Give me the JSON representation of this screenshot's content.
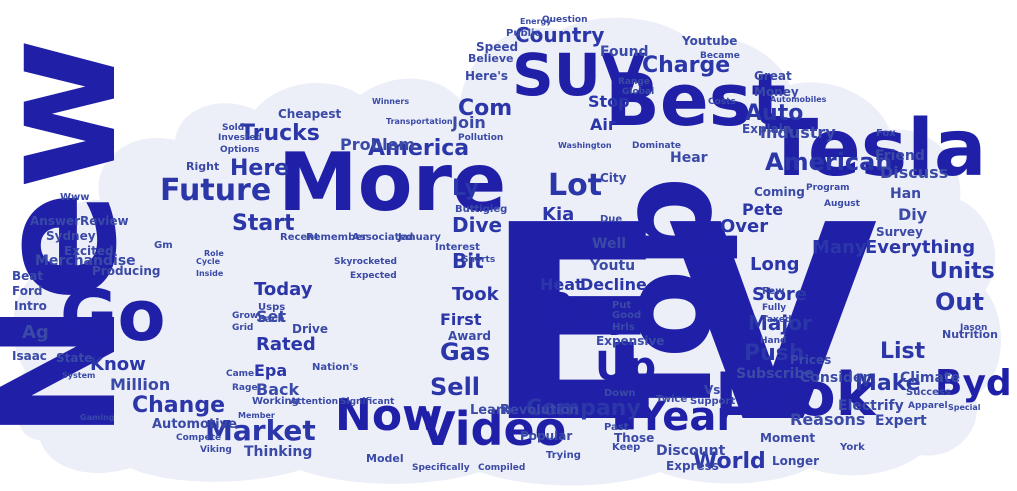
{
  "colors": {
    "background": "#ffffff",
    "cloud": "#eceef8",
    "primary": "#1f1fa8",
    "secondary": "#2b36a8",
    "tertiary": "#3a4aa6"
  },
  "words": [
    {
      "id": "ev",
      "text": "EV"
    },
    {
      "id": "new",
      "text": "New"
    },
    {
      "id": "top",
      "text": "Top"
    },
    {
      "id": "tesla",
      "text": "Tesla"
    },
    {
      "id": "more",
      "text": "More"
    },
    {
      "id": "best",
      "text": "Best"
    },
    {
      "id": "suv",
      "text": "SUV"
    },
    {
      "id": "look",
      "text": "Look"
    },
    {
      "id": "go",
      "text": "Go"
    },
    {
      "id": "buy",
      "text": "Buy"
    },
    {
      "id": "video",
      "text": "Video"
    },
    {
      "id": "now",
      "text": "Now"
    },
    {
      "id": "year",
      "text": "Year"
    },
    {
      "id": "market",
      "text": "Market"
    },
    {
      "id": "future",
      "text": "Future"
    },
    {
      "id": "american",
      "text": "American"
    },
    {
      "id": "byd",
      "text": "Byd"
    },
    {
      "id": "up",
      "text": "Up"
    },
    {
      "id": "lot",
      "text": "Lot"
    },
    {
      "id": "charge",
      "text": "Charge"
    },
    {
      "id": "country",
      "text": "Country"
    },
    {
      "id": "america",
      "text": "America"
    },
    {
      "id": "trucks",
      "text": "Trucks"
    },
    {
      "id": "here",
      "text": "Here"
    },
    {
      "id": "start",
      "text": "Start"
    },
    {
      "id": "gas",
      "text": "Gas"
    },
    {
      "id": "sell",
      "text": "Sell"
    },
    {
      "id": "company",
      "text": "Company"
    },
    {
      "id": "world",
      "text": "World"
    },
    {
      "id": "change",
      "text": "Change"
    },
    {
      "id": "auto",
      "text": "Auto"
    },
    {
      "id": "com",
      "text": "Com"
    },
    {
      "id": "join",
      "text": "Join"
    },
    {
      "id": "ly",
      "text": "Ly"
    },
    {
      "id": "dive",
      "text": "Dive"
    },
    {
      "id": "bit",
      "text": "Bit"
    },
    {
      "id": "took",
      "text": "Took"
    },
    {
      "id": "first",
      "text": "First"
    },
    {
      "id": "kia",
      "text": "Kia"
    },
    {
      "id": "heat",
      "text": "Heat"
    },
    {
      "id": "decline",
      "text": "Decline"
    },
    {
      "id": "store",
      "text": "Store"
    },
    {
      "id": "long",
      "text": "Long"
    },
    {
      "id": "major",
      "text": "Major"
    },
    {
      "id": "push",
      "text": "Push"
    },
    {
      "id": "over",
      "text": "Over"
    },
    {
      "id": "pete",
      "text": "Pete"
    },
    {
      "id": "many",
      "text": "Many"
    },
    {
      "id": "everything",
      "text": "Everything"
    },
    {
      "id": "units",
      "text": "Units"
    },
    {
      "id": "out",
      "text": "Out"
    },
    {
      "id": "list",
      "text": "List"
    },
    {
      "id": "make",
      "text": "Make"
    },
    {
      "id": "consider",
      "text": "Consider"
    },
    {
      "id": "subscribe",
      "text": "Subscribe"
    },
    {
      "id": "climate",
      "text": "Climate"
    },
    {
      "id": "electrify",
      "text": "Electrify"
    },
    {
      "id": "expert",
      "text": "Expert"
    },
    {
      "id": "reasons",
      "text": "Reasons"
    },
    {
      "id": "industry",
      "text": "Industry"
    },
    {
      "id": "discuss",
      "text": "Discuss"
    },
    {
      "id": "friend",
      "text": "Friend"
    },
    {
      "id": "han",
      "text": "Han"
    },
    {
      "id": "diy",
      "text": "Diy"
    },
    {
      "id": "know",
      "text": "Know"
    },
    {
      "id": "million",
      "text": "Million"
    },
    {
      "id": "rated",
      "text": "Rated"
    },
    {
      "id": "epa",
      "text": "Epa"
    },
    {
      "id": "back",
      "text": "Back"
    },
    {
      "id": "today",
      "text": "Today"
    },
    {
      "id": "set",
      "text": "Set"
    },
    {
      "id": "problem",
      "text": "Problem"
    },
    {
      "id": "merchandise",
      "text": "Merchandise"
    },
    {
      "id": "ag",
      "text": "Ag"
    },
    {
      "id": "automotive",
      "text": "Automotive"
    },
    {
      "id": "thinking",
      "text": "Thinking"
    },
    {
      "id": "learn",
      "text": "Learn"
    },
    {
      "id": "revolution",
      "text": "Revolution"
    },
    {
      "id": "popular",
      "text": "Popular"
    },
    {
      "id": "discount",
      "text": "Discount"
    },
    {
      "id": "express",
      "text": "Express"
    },
    {
      "id": "moment",
      "text": "Moment"
    },
    {
      "id": "longer",
      "text": "Longer"
    },
    {
      "id": "hear",
      "text": "Hear"
    },
    {
      "id": "coming",
      "text": "Coming"
    },
    {
      "id": "city",
      "text": "City"
    },
    {
      "id": "explain",
      "text": "Explain"
    },
    {
      "id": "money",
      "text": "Money"
    },
    {
      "id": "great",
      "text": "Great"
    },
    {
      "id": "stop",
      "text": "Stop"
    },
    {
      "id": "air",
      "text": "Air"
    },
    {
      "id": "found",
      "text": "Found"
    },
    {
      "id": "youtube",
      "text": "Youtube"
    },
    {
      "id": "speed",
      "text": "Speed"
    },
    {
      "id": "public",
      "text": "Public"
    },
    {
      "id": "believe",
      "text": "Believe"
    },
    {
      "id": "heres",
      "text": "Here's"
    },
    {
      "id": "cheapest",
      "text": "Cheapest"
    },
    {
      "id": "answer",
      "text": "Answer"
    },
    {
      "id": "sydney",
      "text": "Sydney"
    },
    {
      "id": "excited",
      "text": "Excited"
    },
    {
      "id": "review",
      "text": "Review"
    },
    {
      "id": "producing",
      "text": "Producing"
    },
    {
      "id": "intro",
      "text": "Intro"
    },
    {
      "id": "beat",
      "text": "Beat"
    },
    {
      "id": "ford",
      "text": "Ford"
    },
    {
      "id": "isaac",
      "text": "Isaac"
    },
    {
      "id": "state",
      "text": "State"
    },
    {
      "id": "recent",
      "text": "Recent"
    },
    {
      "id": "remember",
      "text": "Remember"
    },
    {
      "id": "associated",
      "text": "Associated"
    },
    {
      "id": "january",
      "text": "January"
    },
    {
      "id": "interest",
      "text": "Interest"
    },
    {
      "id": "buttigieg",
      "text": "Buttigieg"
    },
    {
      "id": "working",
      "text": "Working"
    },
    {
      "id": "nations",
      "text": "Nation's"
    },
    {
      "id": "usps",
      "text": "Usps"
    },
    {
      "id": "each",
      "text": "Each"
    },
    {
      "id": "drive",
      "text": "Drive"
    },
    {
      "id": "award",
      "text": "Award"
    },
    {
      "id": "expensive",
      "text": "Expensive"
    },
    {
      "id": "hrls",
      "text": "Hrls"
    },
    {
      "id": "good",
      "text": "Good"
    },
    {
      "id": "put",
      "text": "Put"
    },
    {
      "id": "well",
      "text": "Well"
    },
    {
      "id": "youtu",
      "text": "Youtu"
    },
    {
      "id": "due",
      "text": "Due"
    },
    {
      "id": "vs",
      "text": "Vs"
    },
    {
      "id": "those",
      "text": "Those"
    },
    {
      "id": "twice",
      "text": "Twice"
    },
    {
      "id": "support",
      "text": "Support"
    },
    {
      "id": "trying",
      "text": "Trying"
    },
    {
      "id": "down",
      "text": "Down"
    },
    {
      "id": "past",
      "text": "Past"
    },
    {
      "id": "keep",
      "text": "Keep"
    },
    {
      "id": "survey",
      "text": "Survey"
    },
    {
      "id": "nutrition",
      "text": "Nutrition"
    },
    {
      "id": "success",
      "text": "Success"
    },
    {
      "id": "prices",
      "text": "Prices"
    },
    {
      "id": "york",
      "text": "York"
    },
    {
      "id": "fox",
      "text": "Fox"
    },
    {
      "id": "energy",
      "text": "Energy"
    },
    {
      "id": "question",
      "text": "Question"
    },
    {
      "id": "range",
      "text": "Range"
    },
    {
      "id": "global",
      "text": "Global"
    },
    {
      "id": "became",
      "text": "Became"
    },
    {
      "id": "transportation",
      "text": "Transportation"
    },
    {
      "id": "pollution",
      "text": "Pollution"
    },
    {
      "id": "washington",
      "text": "Washington"
    },
    {
      "id": "dominate",
      "text": "Dominate"
    },
    {
      "id": "costs",
      "text": "Costs"
    },
    {
      "id": "invested",
      "text": "Invested"
    },
    {
      "id": "options",
      "text": "Options"
    },
    {
      "id": "sold",
      "text": "Sold"
    },
    {
      "id": "right",
      "text": "Right"
    },
    {
      "id": "www",
      "text": "Www"
    },
    {
      "id": "gm",
      "text": "Gm"
    },
    {
      "id": "compete",
      "text": "Compete"
    },
    {
      "id": "viking",
      "text": "Viking"
    },
    {
      "id": "model",
      "text": "Model"
    },
    {
      "id": "specifically",
      "text": "Specifically"
    },
    {
      "id": "compiled",
      "text": "Compiled"
    },
    {
      "id": "significant",
      "text": "Significant"
    },
    {
      "id": "attention",
      "text": "Attention"
    },
    {
      "id": "member",
      "text": "Member"
    },
    {
      "id": "rage",
      "text": "Rage"
    },
    {
      "id": "came",
      "text": "Came"
    },
    {
      "id": "grid",
      "text": "Grid"
    },
    {
      "id": "grow",
      "text": "Grow"
    },
    {
      "id": "role",
      "text": "Role"
    },
    {
      "id": "cycle",
      "text": "Cycle"
    },
    {
      "id": "inside",
      "text": "Inside"
    },
    {
      "id": "gaming",
      "text": "Gaming"
    },
    {
      "id": "system",
      "text": "System"
    },
    {
      "id": "automobiles",
      "text": "Automobiles"
    },
    {
      "id": "program",
      "text": "Program"
    },
    {
      "id": "august",
      "text": "August"
    },
    {
      "id": "few",
      "text": "Few"
    },
    {
      "id": "fully",
      "text": "Fully"
    },
    {
      "id": "taxed",
      "text": "Taxed"
    },
    {
      "id": "hand",
      "text": "Hand"
    },
    {
      "id": "skyrocketed",
      "text": "Skyrocketed"
    },
    {
      "id": "expected",
      "text": "Expected"
    },
    {
      "id": "shorts",
      "text": "Shorts"
    },
    {
      "id": "winners",
      "text": "Winners"
    },
    {
      "id": "jason",
      "text": "Jason"
    },
    {
      "id": "apparel",
      "text": "Apparel"
    },
    {
      "id": "special",
      "text": "Special"
    }
  ]
}
